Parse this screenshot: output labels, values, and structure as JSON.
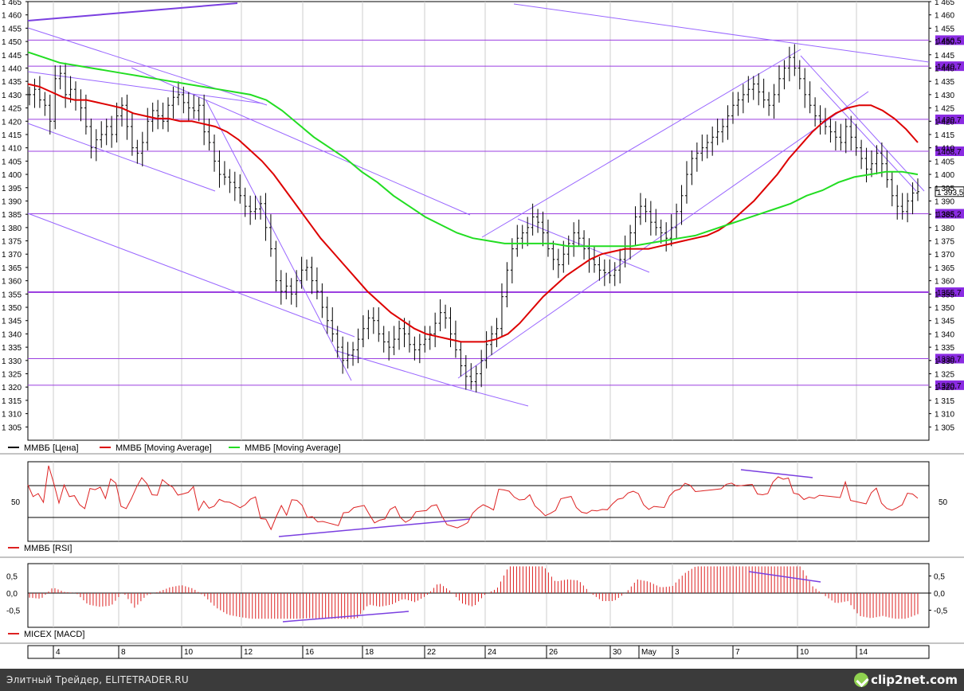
{
  "chart_data": [
    {
      "type": "line",
      "title": "",
      "instrument": "ММВБ",
      "x_axis_labels": [
        "4",
        "8",
        "10",
        "12",
        "16",
        "18",
        "22",
        "24",
        "26",
        "30",
        "May",
        "3",
        "7",
        "10",
        "14"
      ],
      "y_ticks": [
        1305,
        1310,
        1315,
        1320,
        1325,
        1330,
        1335,
        1340,
        1345,
        1350,
        1355,
        1360,
        1365,
        1370,
        1375,
        1380,
        1385,
        1390,
        1395,
        1400,
        1405,
        1410,
        1415,
        1420,
        1425,
        1430,
        1435,
        1440,
        1445,
        1450,
        1455,
        1460,
        1465
      ],
      "ylim": [
        1300,
        1465
      ],
      "last_price_label": "1 393,5",
      "level_labels": [
        "1450,5",
        "1440,7",
        "1420,7",
        "1408,7",
        "1385,2",
        "1355,7",
        "1330,7",
        "1320,7"
      ],
      "levels": [
        1450.5,
        1440.7,
        1420.7,
        1408.7,
        1385.2,
        1355.7,
        1330.7,
        1320.7
      ],
      "price_closes": [
        1430,
        1432,
        1428,
        1426,
        1420,
        1436,
        1438,
        1430,
        1432,
        1428,
        1425,
        1418,
        1410,
        1413,
        1415,
        1418,
        1415,
        1422,
        1426,
        1418,
        1410,
        1408,
        1412,
        1420,
        1424,
        1422,
        1420,
        1426,
        1429,
        1430,
        1427,
        1425,
        1424,
        1426,
        1416,
        1412,
        1405,
        1400,
        1399,
        1397,
        1395,
        1392,
        1388,
        1386,
        1387,
        1389,
        1380,
        1372,
        1360,
        1356,
        1358,
        1355,
        1360,
        1364,
        1365,
        1360,
        1356,
        1350,
        1345,
        1340,
        1335,
        1330,
        1332,
        1334,
        1338,
        1342,
        1346,
        1345,
        1340,
        1337,
        1335,
        1338,
        1342,
        1340,
        1336,
        1334,
        1336,
        1338,
        1340,
        1344,
        1348,
        1346,
        1340,
        1334,
        1328,
        1324,
        1322,
        1325,
        1330,
        1336,
        1340,
        1342,
        1354,
        1364,
        1372,
        1376,
        1378,
        1380,
        1384,
        1382,
        1378,
        1372,
        1368,
        1366,
        1370,
        1374,
        1378,
        1376,
        1372,
        1368,
        1366,
        1364,
        1363,
        1362,
        1364,
        1368,
        1372,
        1378,
        1384,
        1388,
        1386,
        1382,
        1380,
        1378,
        1376,
        1380,
        1386,
        1392,
        1400,
        1406,
        1408,
        1410,
        1412,
        1414,
        1416,
        1418,
        1422,
        1426,
        1428,
        1430,
        1432,
        1434,
        1431,
        1428,
        1426,
        1430,
        1436,
        1440,
        1444,
        1440,
        1436,
        1430,
        1426,
        1422,
        1420,
        1418,
        1416,
        1414,
        1412,
        1418,
        1414,
        1410,
        1406,
        1402,
        1404,
        1408,
        1404,
        1398,
        1392,
        1388,
        1386,
        1390,
        1393,
        1393.5
      ],
      "series": [
        {
          "name": "ММВБ [Цена]",
          "color": "#000000"
        },
        {
          "name": "ММВБ [Moving Average]",
          "color": "#dd0000",
          "values": [
            1434,
            1433,
            1431,
            1429,
            1428,
            1428,
            1427,
            1426,
            1425,
            1423,
            1422,
            1421,
            1421,
            1420,
            1420,
            1419,
            1418,
            1416,
            1413,
            1409,
            1405,
            1400,
            1394,
            1388,
            1382,
            1376,
            1371,
            1366,
            1361,
            1356,
            1352,
            1348,
            1345,
            1342,
            1340,
            1339,
            1338,
            1337,
            1337,
            1337,
            1338,
            1340,
            1344,
            1349,
            1354,
            1358,
            1362,
            1365,
            1368,
            1370,
            1371,
            1372,
            1372,
            1372,
            1373,
            1374,
            1375,
            1376,
            1377,
            1379,
            1382,
            1386,
            1390,
            1395,
            1400,
            1406,
            1411,
            1416,
            1420,
            1423,
            1425,
            1426,
            1426,
            1424,
            1421,
            1417,
            1412
          ]
        },
        {
          "name": "ММВБ [Moving Average]",
          "color": "#22dd22",
          "values": [
            1446,
            1444,
            1442,
            1441,
            1440,
            1439,
            1438,
            1437,
            1436,
            1435,
            1434,
            1433,
            1432,
            1431,
            1430,
            1428,
            1424,
            1419,
            1414,
            1410,
            1406,
            1401,
            1397,
            1392,
            1388,
            1384,
            1381,
            1378,
            1376,
            1375,
            1374,
            1374,
            1374,
            1374,
            1373,
            1373,
            1373,
            1373,
            1373,
            1374,
            1375,
            1376,
            1377,
            1379,
            1381,
            1383,
            1385,
            1387,
            1389,
            1392,
            1394,
            1397,
            1399,
            1400,
            1401,
            1401,
            1400
          ]
        }
      ],
      "grid": true,
      "legend": "bottom-left"
    },
    {
      "type": "line",
      "title": "",
      "series": [
        {
          "name": "ММВБ [RSI]",
          "color": "#dd2222"
        }
      ],
      "y_ticks": [
        50
      ],
      "ylim": [
        0,
        100
      ],
      "grid": true
    },
    {
      "type": "bar",
      "title": "",
      "series": [
        {
          "name": "MICEX [MACD]",
          "color": "#dd2222"
        }
      ],
      "y_ticks": [
        "0,5",
        "0,0",
        "-0,5"
      ],
      "ylim": [
        -0.8,
        0.8
      ],
      "grid": true
    }
  ],
  "footer": {
    "text": "Элитный Трейдер, ELITETRADER.RU",
    "logo": "clip2net.com",
    "logo_icon": "check-circle-icon"
  },
  "colors": {
    "level_line": "#9b3fe0",
    "label_bg": "#8a2be2",
    "trend_line": "#9966ff",
    "footer_bg": "#3b3b3b"
  }
}
